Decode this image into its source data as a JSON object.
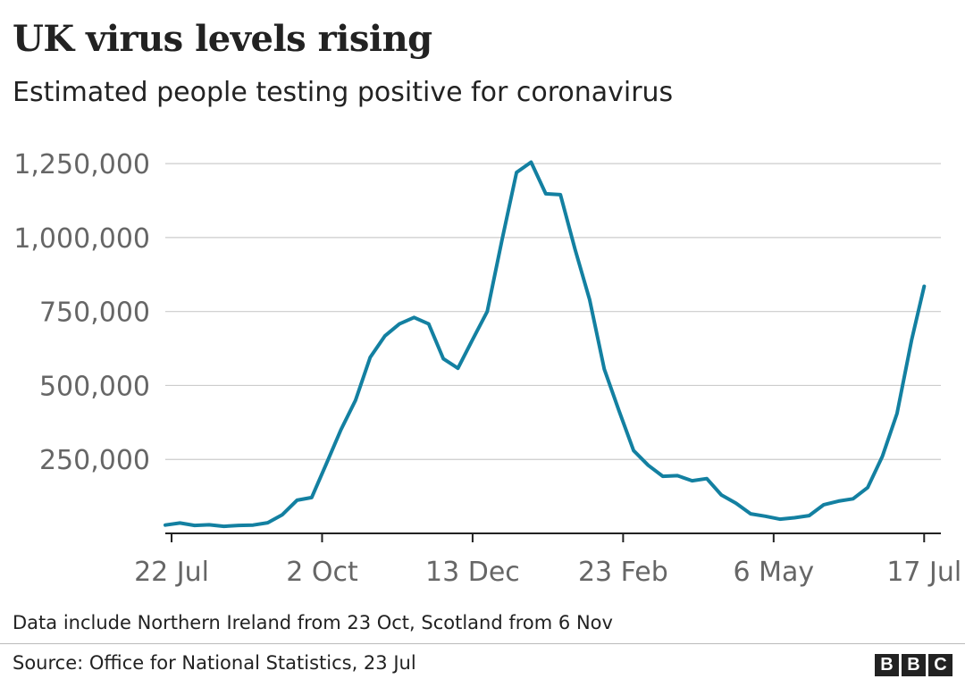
{
  "chart_data": {
    "type": "line",
    "title": "UK virus levels rising",
    "subtitle": "Estimated people testing positive for coronavirus",
    "xlabel": "",
    "ylabel": "",
    "ylim": [
      0,
      1350000
    ],
    "y_ticks": [
      250000,
      500000,
      750000,
      1000000,
      1250000
    ],
    "y_tick_labels": [
      "250,000",
      "500,000",
      "750,000",
      "1,000,000",
      "1,250,000"
    ],
    "x_ticks": [
      "22 Jul",
      "2 Oct",
      "13 Dec",
      "23 Feb",
      "6 May",
      "17 Jul"
    ],
    "x_range": [
      "2020-07-19",
      "2021-07-25"
    ],
    "grid": "horizontal",
    "series": [
      {
        "color": "#1380a1",
        "x": [
          "2020-07-19",
          "2020-07-26",
          "2020-08-02",
          "2020-08-09",
          "2020-08-16",
          "2020-08-23",
          "2020-08-30",
          "2020-09-06",
          "2020-09-13",
          "2020-09-20",
          "2020-09-27",
          "2020-10-04",
          "2020-10-11",
          "2020-10-18",
          "2020-10-25",
          "2020-11-01",
          "2020-11-08",
          "2020-11-15",
          "2020-11-22",
          "2020-11-29",
          "2020-12-06",
          "2020-12-13",
          "2020-12-20",
          "2020-12-27",
          "2021-01-03",
          "2021-01-10",
          "2021-01-17",
          "2021-01-24",
          "2021-01-31",
          "2021-02-07",
          "2021-02-14",
          "2021-02-21",
          "2021-02-28",
          "2021-03-07",
          "2021-03-14",
          "2021-03-21",
          "2021-03-28",
          "2021-04-04",
          "2021-04-11",
          "2021-04-18",
          "2021-04-25",
          "2021-05-02",
          "2021-05-09",
          "2021-05-16",
          "2021-05-23",
          "2021-05-30",
          "2021-06-06",
          "2021-06-13",
          "2021-06-20",
          "2021-06-27",
          "2021-07-04",
          "2021-07-11",
          "2021-07-17"
        ],
        "values": [
          28000,
          35000,
          27000,
          29000,
          24000,
          27000,
          28000,
          36000,
          63000,
          112000,
          121000,
          235000,
          350000,
          450000,
          595000,
          667000,
          708000,
          730000,
          708000,
          590000,
          558000,
          655000,
          750000,
          990000,
          1220000,
          1255000,
          1148000,
          1145000,
          960000,
          790000,
          555000,
          415000,
          280000,
          230000,
          193000,
          195000,
          178000,
          185000,
          130000,
          102000,
          66000,
          58000,
          48000,
          53000,
          60000,
          97000,
          109000,
          117000,
          155000,
          260000,
          405000,
          653000,
          835000
        ]
      }
    ],
    "annotations": [
      "Data include Northern Ireland from 23 Oct, Scotland from 6 Nov"
    ],
    "source": "Source: Office for National Statistics, 23 Jul"
  },
  "logo": {
    "letters": [
      "B",
      "B",
      "C"
    ]
  },
  "colors": {
    "line": "#1380a1",
    "grid": "#cccccc",
    "axis": "#222222",
    "tick_text": "#666666"
  }
}
